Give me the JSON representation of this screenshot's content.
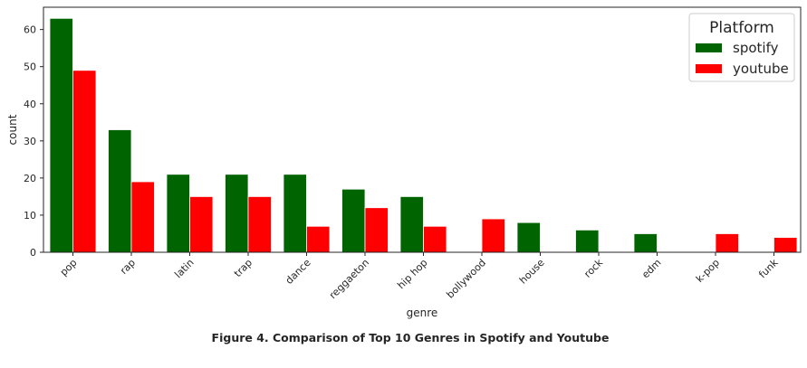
{
  "caption": "Figure 4. Comparison of Top 10 Genres in Spotify and Youtube",
  "chart_data": {
    "type": "bar",
    "xlabel": "genre",
    "ylabel": "count",
    "ylim": [
      0,
      66
    ],
    "yticks": [
      0,
      10,
      20,
      30,
      40,
      50,
      60
    ],
    "categories": [
      "pop",
      "rap",
      "latin",
      "trap",
      "dance",
      "reggaeton",
      "hip hop",
      "bollywood",
      "house",
      "rock",
      "edm",
      "k-pop",
      "funk"
    ],
    "series": [
      {
        "name": "spotify",
        "color": "#006400",
        "values": [
          63,
          33,
          21,
          21,
          21,
          17,
          15,
          0,
          8,
          6,
          5,
          0,
          0
        ]
      },
      {
        "name": "youtube",
        "color": "#ff0000",
        "values": [
          49,
          19,
          15,
          15,
          7,
          12,
          7,
          9,
          0,
          0,
          0,
          5,
          4
        ]
      }
    ],
    "legend": {
      "title": "Platform",
      "placement": "top-right"
    },
    "grid": false
  }
}
